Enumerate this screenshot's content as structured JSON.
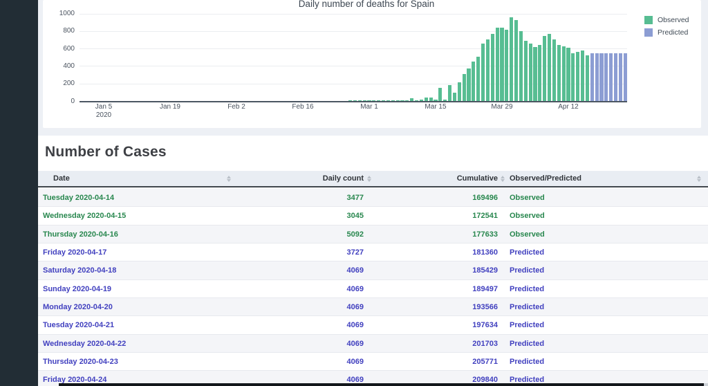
{
  "page": {
    "background": "#edf0f5",
    "sidebar_color": "#222d35",
    "bottom_bar_color": "#13171b"
  },
  "chart_data": {
    "type": "bar",
    "title": "Daily number of deaths for Spain",
    "xlabel": "",
    "ylabel": "",
    "ylim": [
      0,
      1000
    ],
    "yticks": [
      0,
      200,
      400,
      600,
      800,
      1000
    ],
    "grid": true,
    "legend_position": "top-right",
    "x_start_date": "2020-01-05",
    "x_end_date": "2020-04-24",
    "xticks": [
      {
        "date": "2020-01-05",
        "line1": "Jan 5",
        "line2": "2020"
      },
      {
        "date": "2020-01-19",
        "line1": "Jan 19"
      },
      {
        "date": "2020-02-02",
        "line1": "Feb 2"
      },
      {
        "date": "2020-02-16",
        "line1": "Feb 16"
      },
      {
        "date": "2020-03-01",
        "line1": "Mar 1"
      },
      {
        "date": "2020-03-15",
        "line1": "Mar 15"
      },
      {
        "date": "2020-03-29",
        "line1": "Mar 29"
      },
      {
        "date": "2020-04-12",
        "line1": "Apr 12"
      }
    ],
    "series": [
      {
        "name": "Observed",
        "color": "#57bd92",
        "points": [
          [
            "2020-02-26",
            2
          ],
          [
            "2020-02-27",
            2
          ],
          [
            "2020-02-28",
            3
          ],
          [
            "2020-02-29",
            2
          ],
          [
            "2020-03-01",
            2
          ],
          [
            "2020-03-02",
            2
          ],
          [
            "2020-03-03",
            3
          ],
          [
            "2020-03-04",
            3
          ],
          [
            "2020-03-05",
            3
          ],
          [
            "2020-03-06",
            4
          ],
          [
            "2020-03-07",
            4
          ],
          [
            "2020-03-08",
            6
          ],
          [
            "2020-03-09",
            8
          ],
          [
            "2020-03-10",
            28
          ],
          [
            "2020-03-11",
            8
          ],
          [
            "2020-03-12",
            14
          ],
          [
            "2020-03-13",
            37
          ],
          [
            "2020-03-14",
            42
          ],
          [
            "2020-03-15",
            12
          ],
          [
            "2020-03-16",
            152
          ],
          [
            "2020-03-17",
            18
          ],
          [
            "2020-03-18",
            180
          ],
          [
            "2020-03-19",
            94
          ],
          [
            "2020-03-20",
            216
          ],
          [
            "2020-03-21",
            310
          ],
          [
            "2020-03-22",
            370
          ],
          [
            "2020-03-23",
            448
          ],
          [
            "2020-03-24",
            508
          ],
          [
            "2020-03-25",
            658
          ],
          [
            "2020-03-26",
            700
          ],
          [
            "2020-03-27",
            768
          ],
          [
            "2020-03-28",
            835
          ],
          [
            "2020-03-29",
            838
          ],
          [
            "2020-03-30",
            812
          ],
          [
            "2020-03-31",
            954
          ],
          [
            "2020-04-01",
            928
          ],
          [
            "2020-04-02",
            795
          ],
          [
            "2020-04-03",
            690
          ],
          [
            "2020-04-04",
            655
          ],
          [
            "2020-04-05",
            618
          ],
          [
            "2020-04-06",
            637
          ],
          [
            "2020-04-07",
            743
          ],
          [
            "2020-04-08",
            765
          ],
          [
            "2020-04-09",
            700
          ],
          [
            "2020-04-10",
            640
          ],
          [
            "2020-04-11",
            625
          ],
          [
            "2020-04-12",
            605
          ],
          [
            "2020-04-13",
            545
          ],
          [
            "2020-04-14",
            565
          ],
          [
            "2020-04-15",
            580
          ],
          [
            "2020-04-16",
            522
          ]
        ]
      },
      {
        "name": "Predicted",
        "color": "#8c9dd3",
        "points": [
          [
            "2020-04-17",
            543
          ],
          [
            "2020-04-18",
            543
          ],
          [
            "2020-04-19",
            543
          ],
          [
            "2020-04-20",
            543
          ],
          [
            "2020-04-21",
            543
          ],
          [
            "2020-04-22",
            543
          ],
          [
            "2020-04-23",
            543
          ],
          [
            "2020-04-24",
            543
          ]
        ]
      }
    ]
  },
  "table": {
    "title": "Number of Cases",
    "columns": [
      "Date",
      "Daily count",
      "Cumulative",
      "Observed/Predicted"
    ],
    "status_colors": {
      "Observed": "#28874e",
      "Predicted": "#4140bf"
    },
    "rows": [
      {
        "date": "Tuesday 2020-04-14",
        "daily": "3477",
        "cumulative": "169496",
        "status": "Observed"
      },
      {
        "date": "Wednesday 2020-04-15",
        "daily": "3045",
        "cumulative": "172541",
        "status": "Observed"
      },
      {
        "date": "Thursday 2020-04-16",
        "daily": "5092",
        "cumulative": "177633",
        "status": "Observed"
      },
      {
        "date": "Friday 2020-04-17",
        "daily": "3727",
        "cumulative": "181360",
        "status": "Predicted"
      },
      {
        "date": "Saturday 2020-04-18",
        "daily": "4069",
        "cumulative": "185429",
        "status": "Predicted"
      },
      {
        "date": "Sunday 2020-04-19",
        "daily": "4069",
        "cumulative": "189497",
        "status": "Predicted"
      },
      {
        "date": "Monday 2020-04-20",
        "daily": "4069",
        "cumulative": "193566",
        "status": "Predicted"
      },
      {
        "date": "Tuesday 2020-04-21",
        "daily": "4069",
        "cumulative": "197634",
        "status": "Predicted"
      },
      {
        "date": "Wednesday 2020-04-22",
        "daily": "4069",
        "cumulative": "201703",
        "status": "Predicted"
      },
      {
        "date": "Thursday 2020-04-23",
        "daily": "4069",
        "cumulative": "205771",
        "status": "Predicted"
      },
      {
        "date": "Friday 2020-04-24",
        "daily": "4069",
        "cumulative": "209840",
        "status": "Predicted"
      }
    ]
  }
}
